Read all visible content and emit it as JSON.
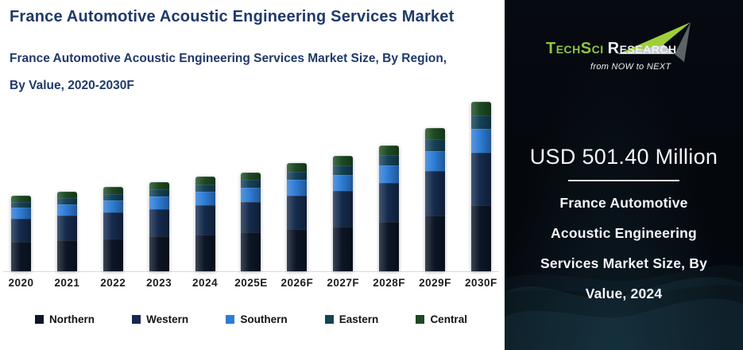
{
  "header": {
    "title": "France Automotive Acoustic Engineering Services Market",
    "subtitle_line1": "France Automotive Acoustic Engineering Services Market Size, By Region,",
    "subtitle_line2": "By Value, 2020-2030F"
  },
  "chart_data": {
    "type": "bar",
    "stacked": true,
    "unit": "USD Million",
    "categories": [
      "2020",
      "2021",
      "2022",
      "2023",
      "2024",
      "2025E",
      "2026F",
      "2027F",
      "2028F",
      "2029F",
      "2030F"
    ],
    "series": [
      {
        "name": "Northern",
        "color": "#0c1626",
        "values": [
          156,
          165,
          174,
          184,
          196,
          205,
          224,
          238,
          261,
          296,
          352
        ]
      },
      {
        "name": "Western",
        "color": "#152b4d",
        "values": [
          124,
          131,
          138,
          146,
          155,
          163,
          178,
          189,
          207,
          236,
          280
        ]
      },
      {
        "name": "Southern",
        "color": "#2e7cd6",
        "values": [
          56,
          59,
          62,
          66,
          70,
          73,
          81,
          85,
          93,
          106,
          126
        ]
      },
      {
        "name": "Eastern",
        "color": "#154257",
        "values": [
          32,
          34,
          36,
          38,
          40,
          42,
          46,
          49,
          53,
          61,
          72
        ]
      },
      {
        "name": "Central",
        "color": "#1d4a22",
        "values": [
          32,
          34,
          36,
          38,
          40,
          42,
          46,
          49,
          53,
          61,
          72
        ]
      }
    ],
    "totals_2024_label": "501.40",
    "ylim": [
      0,
      950
    ],
    "grid": false,
    "legend_position": "bottom"
  },
  "side_panel": {
    "logo": {
      "brand_green": "TechSci",
      "brand_white": "Research",
      "tagline": "from NOW to NEXT"
    },
    "headline": "USD 501.40 Million",
    "lines": [
      "France Automotive",
      "Acoustic Engineering",
      "Services Market Size, By",
      "Value, 2024"
    ]
  },
  "colors": {
    "title_navy": "#1f3a6a",
    "axis_line": "#d9d9d9",
    "panel_background": "#05080f",
    "brand_green": "#8ec641"
  }
}
